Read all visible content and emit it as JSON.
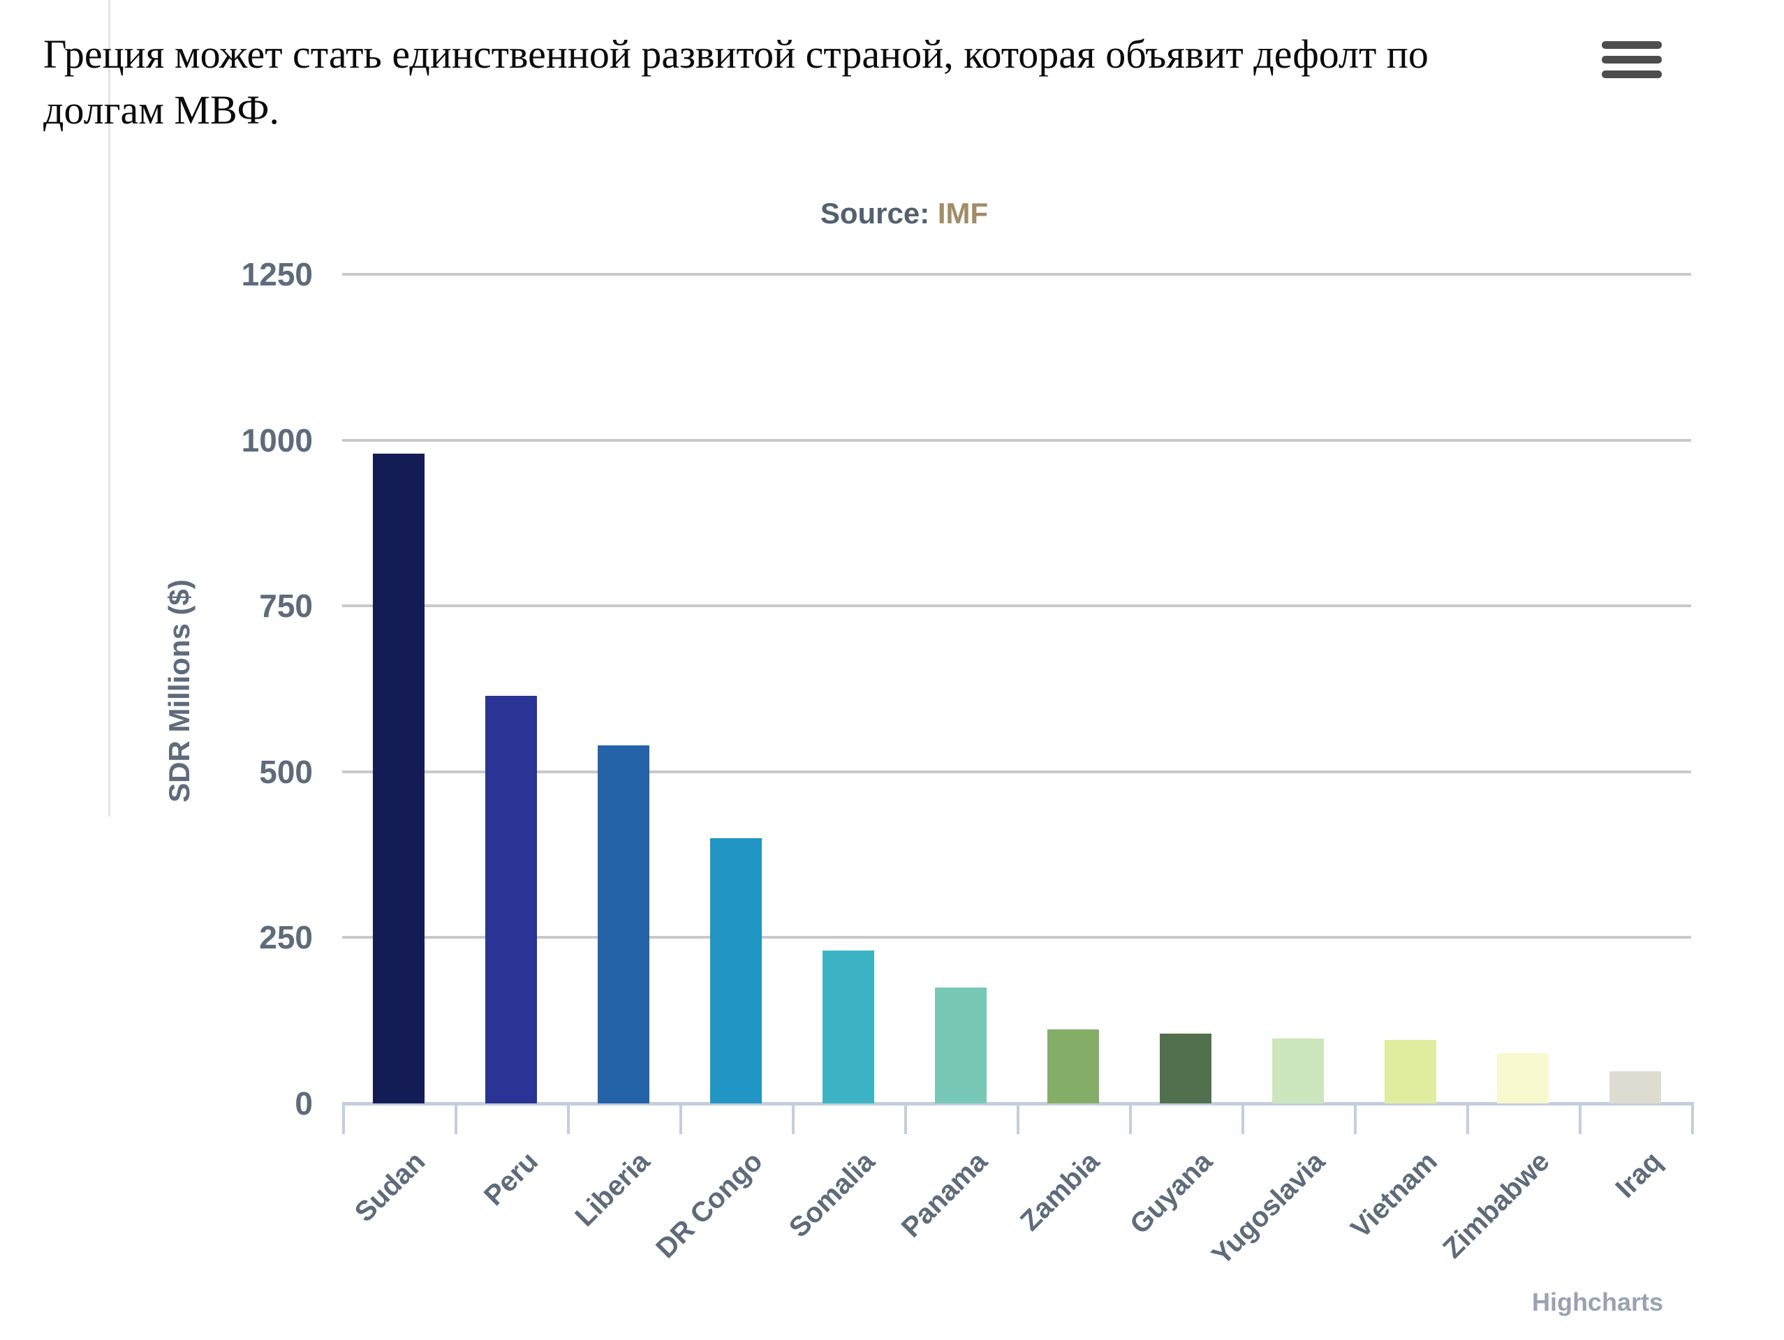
{
  "page": {
    "title": "Греция может стать единственной развитой страной, которая объявит дефолт по долгам МВФ.",
    "credits": "Highcharts"
  },
  "chart_data": {
    "type": "bar",
    "subtitle_prefix": "Source:",
    "subtitle_link": "IMF",
    "subtitle": "Source: IMF",
    "ylabel": "SDR Millions ($)",
    "ylim": [
      0,
      1250
    ],
    "yticks": [
      0,
      250,
      500,
      750,
      1000,
      1250
    ],
    "grid": true,
    "legend": "none",
    "categories": [
      "Sudan",
      "Peru",
      "Liberia",
      "DR Congo",
      "Somalia",
      "Panama",
      "Zambia",
      "Guyana",
      "Yugoslavia",
      "Vietnam",
      "Zimbabwe",
      "Iraq"
    ],
    "values": [
      980,
      615,
      540,
      400,
      230,
      175,
      112,
      105,
      98,
      96,
      76,
      48
    ],
    "bar_colors": [
      "#141c56",
      "#2a3494",
      "#2563a8",
      "#2196c4",
      "#3cb3c4",
      "#77c8b4",
      "#84ae68",
      "#53704e",
      "#cde6bd",
      "#e1ed9e",
      "#f9f9d0",
      "#dedbd0"
    ],
    "gridline_color": "#c9c9c9",
    "axis_line_color": "#c3cedd",
    "label_color": "#5f6b7a"
  }
}
